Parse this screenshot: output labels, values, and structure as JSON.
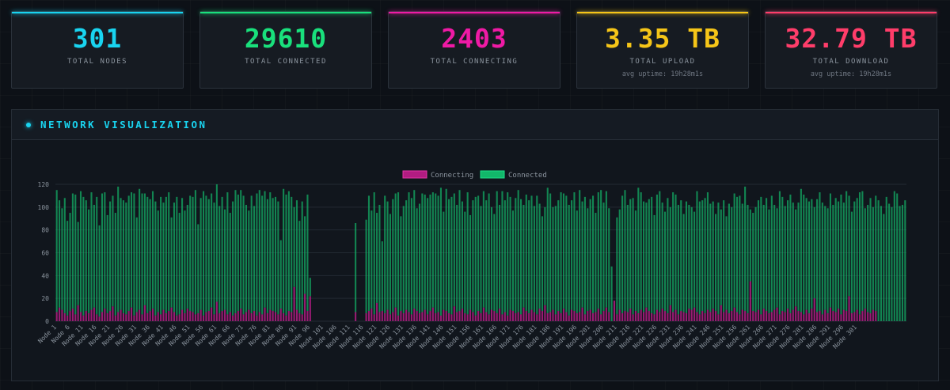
{
  "stats": [
    {
      "value": "301",
      "label": "TOTAL NODES",
      "sub": "",
      "color": "#19d4f0"
    },
    {
      "value": "29610",
      "label": "TOTAL CONNECTED",
      "sub": "",
      "color": "#19e07c"
    },
    {
      "value": "2403",
      "label": "TOTAL CONNECTING",
      "sub": "",
      "color": "#ef1aa5"
    },
    {
      "value": "3.35 TB",
      "label": "TOTAL UPLOAD",
      "sub": "avg uptime: 19h28m1s",
      "color": "#f5c518"
    },
    {
      "value": "32.79 TB",
      "label": "TOTAL DOWNLOAD",
      "sub": "avg uptime: 19h28m1s",
      "color": "#ff3d6a"
    }
  ],
  "panel": {
    "title": "NETWORK VISUALIZATION"
  },
  "chart_data": {
    "type": "bar",
    "stacked": true,
    "legend_position": "top",
    "ylim": [
      0,
      120
    ],
    "yticks": [
      0,
      20,
      40,
      60,
      80,
      100,
      120
    ],
    "xtick_labels": [
      "Node 1",
      "Node 6",
      "Node 11",
      "Node 16",
      "Node 21",
      "Node 26",
      "Node 31",
      "Node 36",
      "Node 41",
      "Node 46",
      "Node 51",
      "Node 56",
      "Node 61",
      "Node 66",
      "Node 71",
      "Node 76",
      "Node 81",
      "Node 86",
      "Node 91",
      "Node 96",
      "Node 101",
      "Node 106",
      "Node 111",
      "Node 116",
      "Node 121",
      "Node 126",
      "Node 131",
      "Node 136",
      "Node 141",
      "Node 146",
      "Node 151",
      "Node 156",
      "Node 161",
      "Node 166",
      "Node 171",
      "Node 176",
      "Node 181",
      "Node 186",
      "Node 191",
      "Node 196",
      "Node 201",
      "Node 206",
      "Node 211",
      "Node 216",
      "Node 221",
      "Node 226",
      "Node 231",
      "Node 236",
      "Node 241",
      "Node 246",
      "Node 251",
      "Node 256",
      "Node 261",
      "Node 266",
      "Node 271",
      "Node 276",
      "Node 281",
      "Node 286",
      "Node 291",
      "Node 296",
      "Node 301"
    ],
    "series_meta": [
      {
        "name": "Connecting",
        "color": "#b21c82",
        "stroke": "#e535a8"
      },
      {
        "name": "Connected",
        "color": "#12b76a",
        "stroke": "#1fe08a"
      }
    ],
    "connected": [
      115,
      106,
      99,
      108,
      88,
      95,
      112,
      111,
      87,
      114,
      109,
      106,
      98,
      113,
      102,
      109,
      84,
      112,
      113,
      93,
      105,
      110,
      95,
      118,
      108,
      106,
      104,
      110,
      113,
      112,
      91,
      116,
      112,
      112,
      109,
      107,
      114,
      105,
      97,
      109,
      104,
      109,
      113,
      91,
      104,
      109,
      95,
      108,
      97,
      102,
      110,
      109,
      115,
      85,
      108,
      114,
      110,
      107,
      112,
      104,
      120,
      101,
      109,
      98,
      113,
      95,
      105,
      115,
      111,
      115,
      110,
      102,
      97,
      110,
      101,
      112,
      115,
      110,
      114,
      107,
      113,
      108,
      109,
      105,
      71,
      116,
      111,
      114,
      109,
      100,
      106,
      88,
      105,
      92,
      111,
      38,
      0,
      0,
      0,
      0,
      0,
      0,
      0,
      0,
      0,
      0,
      0,
      0,
      0,
      0,
      0,
      0,
      86,
      0,
      0,
      0,
      89,
      110,
      97,
      113,
      95,
      102,
      70,
      110,
      105,
      94,
      107,
      112,
      113,
      92,
      101,
      106,
      113,
      108,
      115,
      99,
      103,
      112,
      111,
      108,
      111,
      113,
      112,
      110,
      117,
      96,
      116,
      107,
      109,
      112,
      102,
      115,
      105,
      96,
      113,
      93,
      106,
      109,
      110,
      101,
      114,
      106,
      112,
      100,
      94,
      114,
      102,
      114,
      106,
      113,
      109,
      97,
      108,
      115,
      107,
      102,
      111,
      106,
      110,
      101,
      110,
      103,
      92,
      100,
      117,
      112,
      100,
      101,
      106,
      113,
      112,
      110,
      102,
      106,
      113,
      97,
      115,
      105,
      109,
      99,
      107,
      110,
      95,
      113,
      115,
      104,
      114,
      99,
      48,
      0,
      91,
      98,
      110,
      115,
      102,
      107,
      108,
      97,
      117,
      113,
      105,
      104,
      107,
      109,
      93,
      111,
      114,
      104,
      96,
      108,
      100,
      113,
      111,
      102,
      106,
      94,
      105,
      102,
      100,
      96,
      114,
      105,
      106,
      108,
      113,
      103,
      105,
      94,
      104,
      98,
      106,
      92,
      103,
      100,
      112,
      109,
      110,
      103,
      118,
      102,
      98,
      95,
      100,
      106,
      109,
      102,
      108,
      98,
      110,
      102,
      99,
      114,
      109,
      101,
      106,
      111,
      104,
      98,
      104,
      116,
      111,
      108,
      105,
      107,
      100,
      107,
      113,
      104,
      101,
      99,
      112,
      102,
      108,
      105,
      111,
      104,
      114,
      110,
      96,
      105,
      108,
      113,
      114,
      99,
      102,
      108,
      100,
      110,
      106,
      101,
      94,
      109,
      103,
      100,
      114,
      112,
      101,
      102,
      106
    ],
    "connecting": [
      8,
      12,
      10,
      7,
      5,
      9,
      11,
      6,
      14,
      8,
      5,
      9,
      7,
      10,
      12,
      6,
      4,
      8,
      11,
      7,
      9,
      13,
      5,
      8,
      10,
      7,
      6,
      9,
      12,
      5,
      8,
      10,
      6,
      14,
      7,
      9,
      11,
      5,
      8,
      6,
      10,
      7,
      9,
      12,
      8,
      5,
      6,
      10,
      7,
      11,
      9,
      8,
      6,
      7,
      10,
      5,
      8,
      9,
      12,
      6,
      17,
      7,
      9,
      10,
      6,
      8,
      5,
      7,
      9,
      11,
      6,
      8,
      10,
      7,
      9,
      5,
      8,
      6,
      12,
      7,
      10,
      9,
      8,
      6,
      11,
      7,
      5,
      9,
      8,
      30,
      10,
      7,
      6,
      24,
      9,
      22,
      0,
      0,
      0,
      0,
      0,
      0,
      0,
      0,
      0,
      0,
      0,
      0,
      0,
      0,
      0,
      0,
      8,
      0,
      0,
      0,
      7,
      9,
      11,
      6,
      16,
      8,
      9,
      7,
      10,
      6,
      8,
      12,
      5,
      9,
      7,
      10,
      8,
      6,
      11,
      9,
      7,
      8,
      10,
      6,
      9,
      12,
      7,
      8,
      5,
      10,
      9,
      7,
      6,
      13,
      8,
      9,
      11,
      7,
      6,
      10,
      8,
      5,
      9,
      7,
      12,
      8,
      6,
      10,
      9,
      7,
      11,
      6,
      8,
      5,
      10,
      9,
      7,
      8,
      6,
      12,
      9,
      7,
      10,
      8,
      6,
      11,
      9,
      14,
      7,
      8,
      10,
      6,
      9,
      7,
      11,
      8,
      5,
      10,
      9,
      7,
      8,
      12,
      6,
      9,
      10,
      7,
      8,
      11,
      6,
      9,
      12,
      8,
      0,
      18,
      6,
      10,
      7,
      9,
      8,
      11,
      6,
      9,
      7,
      10,
      8,
      12,
      9,
      7,
      6,
      10,
      8,
      11,
      9,
      7,
      14,
      8,
      10,
      6,
      9,
      8,
      7,
      11,
      10,
      12,
      8,
      6,
      9,
      7,
      10,
      8,
      11,
      9,
      6,
      14,
      8,
      10,
      7,
      9,
      12,
      8,
      6,
      10,
      9,
      7,
      35,
      9,
      8,
      10,
      6,
      11,
      9,
      7,
      8,
      10,
      12,
      6,
      9,
      8,
      11,
      7,
      10,
      13,
      9,
      8,
      6,
      10,
      7,
      11,
      20,
      8,
      9,
      6,
      10,
      7,
      12,
      9,
      8,
      11,
      6,
      10,
      9,
      22,
      7,
      8,
      10,
      6,
      9,
      11,
      8,
      7,
      10,
      9
    ]
  }
}
